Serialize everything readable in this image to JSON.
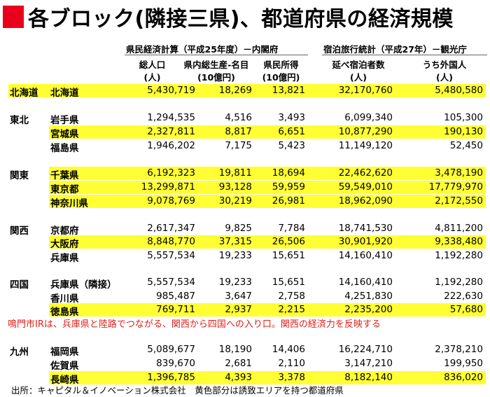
{
  "title": "各ブロック(隣接三県)、都道府県の経済規模",
  "header": {
    "group1": "県民経済計算（平成25年度）－内閣府",
    "group2": "宿泊旅行統計（平成27年）－観光庁",
    "columns": [
      {
        "line1": "総人口",
        "line2": "(人)"
      },
      {
        "line1": "県内総生産-名目",
        "line2": "(10億円)"
      },
      {
        "line1": "県民所得",
        "line2": "(10億円)"
      },
      {
        "line1": "延べ宿泊者数",
        "line2": "(人)"
      },
      {
        "line1": "うち外国人",
        "line2": "(人)"
      }
    ]
  },
  "rows": [
    {
      "region": "北海道",
      "pref": "北海道",
      "pop": "5,430,719",
      "gdp": "18,269",
      "income": "13,821",
      "stays": "32,170,760",
      "foreign": "5,480,580",
      "highlight": true
    },
    {
      "region": "東北",
      "pref": "岩手県",
      "pop": "1,294,535",
      "gdp": "4,516",
      "income": "3,493",
      "stays": "6,099,340",
      "foreign": "105,300",
      "highlight": false
    },
    {
      "region": "",
      "pref": "宮城県",
      "pop": "2,327,811",
      "gdp": "8,817",
      "income": "6,651",
      "stays": "10,877,290",
      "foreign": "190,130",
      "highlight": true
    },
    {
      "region": "",
      "pref": "福島県",
      "pop": "1,946,202",
      "gdp": "7,175",
      "income": "5,423",
      "stays": "11,149,120",
      "foreign": "52,450",
      "highlight": false
    },
    {
      "region": "関東",
      "pref": "千葉県",
      "pop": "6,192,323",
      "gdp": "19,811",
      "income": "18,694",
      "stays": "22,462,620",
      "foreign": "3,478,190",
      "highlight": true
    },
    {
      "region": "",
      "pref": "東京都",
      "pop": "13,299,871",
      "gdp": "93,128",
      "income": "59,959",
      "stays": "59,549,010",
      "foreign": "17,779,970",
      "highlight": true
    },
    {
      "region": "",
      "pref": "神奈川県",
      "pop": "9,078,769",
      "gdp": "30,219",
      "income": "26,981",
      "stays": "18,962,090",
      "foreign": "2,172,550",
      "highlight": true
    },
    {
      "region": "関西",
      "pref": "京都府",
      "pop": "2,617,347",
      "gdp": "9,825",
      "income": "7,784",
      "stays": "18,741,530",
      "foreign": "4,811,200",
      "highlight": false
    },
    {
      "region": "",
      "pref": "大阪府",
      "pop": "8,848,770",
      "gdp": "37,315",
      "income": "26,506",
      "stays": "30,901,920",
      "foreign": "9,338,480",
      "highlight": true
    },
    {
      "region": "",
      "pref": "兵庫県",
      "pop": "5,557,534",
      "gdp": "19,233",
      "income": "15,651",
      "stays": "14,160,410",
      "foreign": "1,192,280",
      "highlight": false
    },
    {
      "region": "四国",
      "pref": "兵庫県（隣接）",
      "pop": "5,557,534",
      "gdp": "19,233",
      "income": "15,651",
      "stays": "14,160,410",
      "foreign": "1,192,280",
      "highlight": false
    },
    {
      "region": "",
      "pref": "香川県",
      "pop": "985,487",
      "gdp": "3,647",
      "income": "2,758",
      "stays": "4,251,830",
      "foreign": "222,630",
      "highlight": false
    },
    {
      "region": "",
      "pref": "徳島県",
      "pop": "769,711",
      "gdp": "2,937",
      "income": "2,215",
      "stays": "2,235,200",
      "foreign": "57,680",
      "highlight": true
    },
    {
      "region": "九州",
      "pref": "福岡県",
      "pop": "5,089,677",
      "gdp": "18,190",
      "income": "14,406",
      "stays": "16,224,710",
      "foreign": "2,378,210",
      "highlight": false
    },
    {
      "region": "",
      "pref": "佐賀県",
      "pop": "839,670",
      "gdp": "2,681",
      "income": "2,110",
      "stays": "3,147,210",
      "foreign": "199,950",
      "highlight": false
    },
    {
      "region": "",
      "pref": "長崎県",
      "pop": "1,396,785",
      "gdp": "4,393",
      "income": "3,378",
      "stays": "8,182,140",
      "foreign": "836,020",
      "highlight": true
    }
  ],
  "note": "鳴門市IRは、兵庫県と陸路でつながる、関西から四国への入り口。関西の経済力を反映する",
  "footer": "出所：キャピタル＆イノベーション株式会社　黄色部分は誘致エリアを持つ都道府県",
  "colors": {
    "highlight": "#ffff33",
    "accent": "#e8001c",
    "note": "#e0201a"
  }
}
